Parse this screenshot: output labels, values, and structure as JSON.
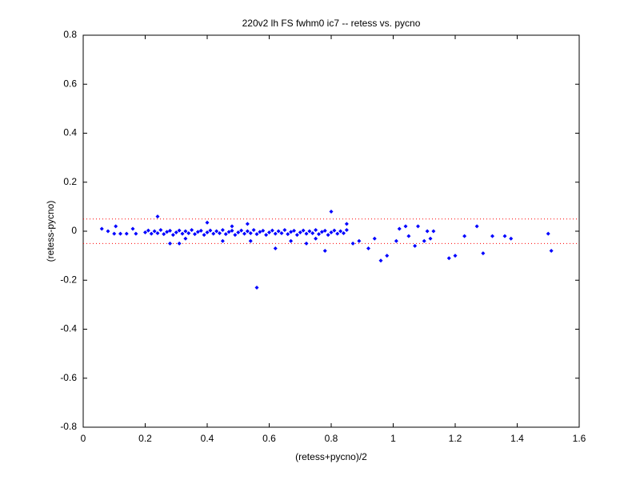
{
  "chart_data": {
    "type": "scatter",
    "title": "220v2 lh FS fwhm0 ic7 -- retess vs. pycno",
    "x_label": "(retess+pycno)/2",
    "y_label": "(retess-pycno)",
    "color": "#0000ff",
    "x": [
      0.2,
      0.21,
      0.22,
      0.23,
      0.24,
      0.25,
      0.26,
      0.27,
      0.28,
      0.29,
      0.3,
      0.31,
      0.32,
      0.33,
      0.34,
      0.35,
      0.36,
      0.37,
      0.38,
      0.39,
      0.4,
      0.41,
      0.42,
      0.43,
      0.44,
      0.45,
      0.46,
      0.47,
      0.48,
      0.49,
      0.5,
      0.51,
      0.52,
      0.53,
      0.54,
      0.55,
      0.56,
      0.57,
      0.58,
      0.59,
      0.6,
      0.61,
      0.62,
      0.63,
      0.64,
      0.65,
      0.66,
      0.67,
      0.68,
      0.69,
      0.7,
      0.71,
      0.72,
      0.73,
      0.74,
      0.75,
      0.76,
      0.77,
      0.78,
      0.79,
      0.8,
      0.81,
      0.82,
      0.83,
      0.84,
      0.85,
      0.06,
      0.08,
      0.1,
      0.105,
      0.12,
      0.14,
      0.16,
      0.17,
      0.24,
      0.28,
      0.31,
      0.33,
      0.4,
      0.45,
      0.48,
      0.53,
      0.54,
      0.56,
      0.62,
      0.67,
      0.72,
      0.75,
      0.78,
      0.8,
      0.85,
      0.87,
      0.89,
      0.92,
      0.94,
      0.96,
      0.98,
      1.01,
      1.02,
      1.04,
      1.05,
      1.07,
      1.08,
      1.1,
      1.11,
      1.12,
      1.13,
      1.18,
      1.2,
      1.23,
      1.27,
      1.29,
      1.32,
      1.36,
      1.38,
      1.5,
      1.51
    ],
    "values": [
      -0.005,
      0.003,
      -0.01,
      0,
      -0.008,
      0.005,
      -0.012,
      -0.003,
      0.002,
      -0.015,
      -0.005,
      0.003,
      -0.01,
      0,
      -0.008,
      0.005,
      -0.012,
      -0.003,
      0.002,
      -0.015,
      -0.005,
      0.003,
      -0.01,
      0,
      -0.008,
      0.005,
      -0.012,
      -0.003,
      0.002,
      -0.015,
      -0.005,
      0.003,
      -0.01,
      0,
      -0.008,
      0.005,
      -0.012,
      -0.003,
      0.002,
      -0.015,
      -0.005,
      0.003,
      -0.01,
      0,
      -0.008,
      0.005,
      -0.012,
      -0.003,
      0.002,
      -0.015,
      -0.005,
      0.003,
      -0.01,
      0,
      -0.008,
      0.005,
      -0.012,
      -0.003,
      0.002,
      -0.015,
      -0.005,
      0.003,
      -0.01,
      0,
      -0.008,
      0.005,
      0.01,
      0,
      -0.01,
      0.02,
      -0.01,
      -0.01,
      0.01,
      -0.01,
      0.06,
      -0.05,
      -0.05,
      -0.03,
      0.035,
      -0.04,
      0.02,
      0.03,
      -0.04,
      -0.23,
      -0.07,
      -0.04,
      -0.05,
      -0.03,
      -0.08,
      0.08,
      0.03,
      -0.05,
      -0.04,
      -0.07,
      -0.03,
      -0.12,
      -0.1,
      -0.04,
      0.01,
      0.02,
      -0.02,
      -0.06,
      0.02,
      -0.04,
      0,
      -0.03,
      0,
      -0.11,
      -0.1,
      -0.02,
      0.02,
      -0.09,
      -0.02,
      -0.02,
      -0.03,
      -0.01,
      -0.08
    ],
    "reference_lines": {
      "values": [
        0.05,
        -0.05
      ],
      "color": "#ff0000"
    },
    "xlim": [
      0,
      1.6
    ],
    "xticks": [
      0,
      0.2,
      0.4,
      0.6,
      0.8,
      1,
      1.2,
      1.4,
      1.6
    ],
    "ylim": [
      -0.8,
      0.8
    ],
    "yticks": [
      -0.8,
      -0.6,
      -0.4,
      -0.2,
      0,
      0.2,
      0.4,
      0.6,
      0.8
    ]
  }
}
